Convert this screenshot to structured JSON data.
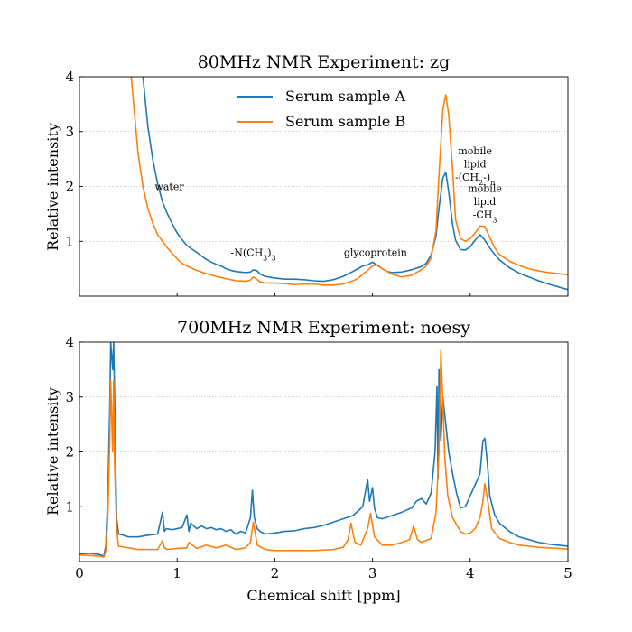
{
  "chart_data": [
    {
      "type": "line",
      "title": "80MHz NMR Experiment: zg",
      "xlabel": "",
      "ylabel": "Relative intensity",
      "xlim": [
        0,
        5
      ],
      "ylim": [
        0,
        4
      ],
      "y_ticks": [
        "1",
        "2",
        "3",
        "4"
      ],
      "grid": "y-only dotted",
      "legend_position": "top-center",
      "series": [
        {
          "name": "Serum sample A",
          "color": "#1f77b4",
          "x": [
            0.65,
            0.7,
            0.75,
            0.8,
            0.85,
            0.9,
            0.95,
            1.0,
            1.05,
            1.1,
            1.15,
            1.2,
            1.25,
            1.3,
            1.35,
            1.4,
            1.45,
            1.5,
            1.55,
            1.6,
            1.65,
            1.7,
            1.75,
            1.78,
            1.82,
            1.85,
            1.9,
            2.0,
            2.1,
            2.2,
            2.3,
            2.4,
            2.5,
            2.6,
            2.7,
            2.8,
            2.85,
            2.9,
            2.95,
            3.0,
            3.05,
            3.1,
            3.15,
            3.2,
            3.3,
            3.4,
            3.5,
            3.55,
            3.6,
            3.65,
            3.68,
            3.72,
            3.75,
            3.78,
            3.82,
            3.85,
            3.9,
            3.95,
            4.0,
            4.05,
            4.1,
            4.15,
            4.2,
            4.25,
            4.3,
            4.4,
            4.5,
            4.6,
            4.7,
            4.8,
            4.9,
            5.0
          ],
          "y": [
            4.0,
            3.1,
            2.5,
            2.05,
            1.72,
            1.5,
            1.32,
            1.15,
            1.03,
            0.92,
            0.86,
            0.8,
            0.73,
            0.67,
            0.62,
            0.58,
            0.55,
            0.5,
            0.47,
            0.45,
            0.44,
            0.43,
            0.44,
            0.48,
            0.46,
            0.4,
            0.36,
            0.33,
            0.31,
            0.31,
            0.3,
            0.28,
            0.27,
            0.3,
            0.36,
            0.45,
            0.5,
            0.55,
            0.57,
            0.62,
            0.56,
            0.5,
            0.45,
            0.43,
            0.44,
            0.48,
            0.54,
            0.6,
            0.75,
            1.1,
            1.6,
            2.15,
            2.26,
            1.9,
            1.3,
            1.02,
            0.85,
            0.84,
            0.9,
            1.02,
            1.12,
            1.02,
            0.88,
            0.76,
            0.66,
            0.52,
            0.42,
            0.35,
            0.28,
            0.22,
            0.17,
            0.12
          ]
        },
        {
          "name": "Serum sample B",
          "color": "#ff7f0e",
          "x": [
            0.53,
            0.55,
            0.6,
            0.65,
            0.7,
            0.75,
            0.8,
            0.85,
            0.9,
            0.95,
            1.0,
            1.05,
            1.1,
            1.15,
            1.2,
            1.3,
            1.4,
            1.5,
            1.6,
            1.7,
            1.75,
            1.78,
            1.82,
            1.85,
            1.9,
            2.0,
            2.1,
            2.2,
            2.3,
            2.4,
            2.5,
            2.6,
            2.7,
            2.8,
            2.85,
            2.9,
            2.95,
            3.0,
            3.05,
            3.1,
            3.2,
            3.3,
            3.4,
            3.5,
            3.55,
            3.6,
            3.65,
            3.68,
            3.72,
            3.75,
            3.78,
            3.82,
            3.85,
            3.9,
            3.95,
            4.0,
            4.05,
            4.1,
            4.15,
            4.2,
            4.25,
            4.3,
            4.4,
            4.5,
            4.6,
            4.7,
            4.8,
            4.9,
            5.0
          ],
          "y": [
            4.0,
            3.6,
            2.6,
            2.0,
            1.6,
            1.33,
            1.12,
            1.0,
            0.88,
            0.78,
            0.68,
            0.6,
            0.55,
            0.51,
            0.47,
            0.41,
            0.36,
            0.32,
            0.28,
            0.27,
            0.29,
            0.35,
            0.3,
            0.26,
            0.24,
            0.24,
            0.23,
            0.21,
            0.22,
            0.22,
            0.2,
            0.2,
            0.22,
            0.28,
            0.32,
            0.4,
            0.47,
            0.55,
            0.57,
            0.5,
            0.4,
            0.35,
            0.38,
            0.48,
            0.55,
            0.7,
            1.2,
            2.2,
            3.4,
            3.67,
            3.3,
            2.3,
            1.4,
            1.05,
            1.0,
            1.05,
            1.15,
            1.28,
            1.27,
            1.07,
            0.88,
            0.76,
            0.64,
            0.56,
            0.5,
            0.46,
            0.43,
            0.41,
            0.39
          ]
        }
      ],
      "annotations": [
        {
          "text": "water",
          "x": 0.92,
          "y": 2.0,
          "lines": [
            "water"
          ]
        },
        {
          "text": "-N(CH3)3",
          "x": 1.78,
          "y": 0.8,
          "lines": [
            "-N(CH3)3"
          ]
        },
        {
          "text": "glycoprotein",
          "x": 3.03,
          "y": 0.8,
          "lines": [
            "glycoprotein"
          ]
        },
        {
          "text": "mobile lipid -(CH2-)n",
          "x": 4.05,
          "y": 2.65,
          "lines": [
            "mobile",
            "lipid",
            "-(CH2-)n"
          ]
        },
        {
          "text": "mobile lipid -CH3",
          "x": 4.15,
          "y": 1.97,
          "lines": [
            "mobile",
            "lipid",
            "-CH3"
          ]
        }
      ]
    },
    {
      "type": "line",
      "title": "700MHz NMR Experiment: noesy",
      "xlabel": "Chemical shift [ppm]",
      "ylabel": "Relative intensity",
      "xlim": [
        0,
        5
      ],
      "ylim": [
        0,
        4
      ],
      "x_ticks": [
        "0",
        "1",
        "2",
        "3",
        "4",
        "5"
      ],
      "y_ticks": [
        "1",
        "2",
        "3",
        "4"
      ],
      "grid": "y-only dotted",
      "series": [
        {
          "name": "Serum sample A",
          "color": "#1f77b4",
          "x": [
            0.0,
            0.1,
            0.2,
            0.25,
            0.27,
            0.29,
            0.31,
            0.32,
            0.34,
            0.35,
            0.36,
            0.38,
            0.4,
            0.45,
            0.5,
            0.6,
            0.7,
            0.8,
            0.85,
            0.87,
            0.89,
            0.95,
            1.0,
            1.05,
            1.1,
            1.12,
            1.14,
            1.2,
            1.25,
            1.3,
            1.35,
            1.4,
            1.45,
            1.5,
            1.55,
            1.6,
            1.65,
            1.7,
            1.75,
            1.77,
            1.79,
            1.82,
            1.85,
            1.9,
            2.0,
            2.1,
            2.2,
            2.3,
            2.4,
            2.5,
            2.6,
            2.7,
            2.8,
            2.9,
            2.95,
            2.97,
            3.0,
            3.02,
            3.05,
            3.1,
            3.2,
            3.3,
            3.4,
            3.45,
            3.5,
            3.55,
            3.6,
            3.64,
            3.66,
            3.67,
            3.68,
            3.7,
            3.72,
            3.75,
            3.78,
            3.82,
            3.86,
            3.9,
            3.95,
            4.0,
            4.05,
            4.1,
            4.13,
            4.15,
            4.18,
            4.2,
            4.25,
            4.3,
            4.4,
            4.5,
            4.6,
            4.7,
            4.8,
            4.9,
            5.0
          ],
          "y": [
            0.14,
            0.15,
            0.13,
            0.1,
            0.3,
            1.2,
            2.8,
            4.0,
            3.5,
            4.0,
            3.0,
            0.8,
            0.5,
            0.48,
            0.45,
            0.45,
            0.48,
            0.5,
            0.9,
            0.55,
            0.6,
            0.58,
            0.6,
            0.62,
            0.85,
            0.55,
            0.7,
            0.6,
            0.65,
            0.6,
            0.62,
            0.58,
            0.6,
            0.55,
            0.58,
            0.5,
            0.55,
            0.52,
            0.8,
            1.3,
            0.8,
            0.6,
            0.55,
            0.5,
            0.52,
            0.55,
            0.56,
            0.6,
            0.62,
            0.66,
            0.72,
            0.78,
            0.84,
            1.0,
            1.5,
            1.1,
            1.35,
            0.98,
            0.8,
            0.78,
            0.84,
            0.9,
            0.98,
            1.1,
            1.15,
            1.05,
            1.25,
            2.0,
            3.2,
            1.5,
            3.5,
            2.2,
            3.0,
            2.5,
            2.0,
            1.6,
            1.25,
            0.98,
            1.0,
            1.2,
            1.4,
            1.6,
            2.2,
            2.25,
            1.7,
            1.2,
            0.85,
            0.7,
            0.55,
            0.45,
            0.4,
            0.35,
            0.32,
            0.3,
            0.28
          ]
        },
        {
          "name": "Serum sample B",
          "color": "#ff7f0e",
          "x": [
            0.0,
            0.1,
            0.2,
            0.25,
            0.27,
            0.29,
            0.31,
            0.32,
            0.34,
            0.35,
            0.36,
            0.38,
            0.4,
            0.5,
            0.6,
            0.7,
            0.8,
            0.85,
            0.87,
            0.9,
            1.0,
            1.1,
            1.12,
            1.2,
            1.3,
            1.4,
            1.5,
            1.6,
            1.7,
            1.75,
            1.78,
            1.82,
            1.9,
            2.0,
            2.2,
            2.4,
            2.6,
            2.7,
            2.75,
            2.78,
            2.82,
            2.88,
            2.95,
            2.98,
            3.02,
            3.1,
            3.2,
            3.3,
            3.38,
            3.42,
            3.46,
            3.5,
            3.6,
            3.65,
            3.68,
            3.7,
            3.72,
            3.74,
            3.77,
            3.82,
            3.9,
            3.95,
            4.0,
            4.05,
            4.1,
            4.13,
            4.15,
            4.18,
            4.22,
            4.3,
            4.4,
            4.5,
            4.6,
            4.7,
            4.8,
            4.9,
            5.0
          ],
          "y": [
            0.12,
            0.11,
            0.1,
            0.08,
            0.2,
            0.8,
            2.2,
            3.3,
            2.0,
            3.3,
            1.8,
            0.6,
            0.28,
            0.25,
            0.22,
            0.22,
            0.22,
            0.38,
            0.25,
            0.22,
            0.24,
            0.25,
            0.35,
            0.24,
            0.3,
            0.25,
            0.3,
            0.22,
            0.25,
            0.35,
            0.72,
            0.3,
            0.22,
            0.2,
            0.2,
            0.2,
            0.22,
            0.26,
            0.4,
            0.7,
            0.35,
            0.3,
            0.6,
            0.88,
            0.45,
            0.3,
            0.3,
            0.35,
            0.4,
            0.65,
            0.4,
            0.35,
            0.42,
            0.9,
            2.0,
            3.85,
            2.9,
            1.9,
            1.2,
            0.8,
            0.55,
            0.5,
            0.52,
            0.6,
            0.8,
            1.1,
            1.42,
            1.1,
            0.6,
            0.42,
            0.35,
            0.3,
            0.28,
            0.26,
            0.25,
            0.24,
            0.23
          ]
        }
      ]
    }
  ]
}
